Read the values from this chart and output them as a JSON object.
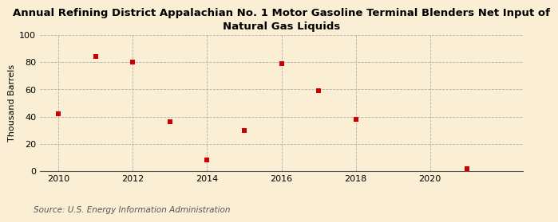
{
  "title_line1": "Annual Refining District Appalachian No. 1 Motor Gasoline Terminal Blenders Net Input of",
  "title_line2": "Natural Gas Liquids",
  "ylabel": "Thousand Barrels",
  "source_text": "Source: U.S. Energy Information Administration",
  "x_values": [
    2010,
    2011,
    2012,
    2013,
    2014,
    2015,
    2016,
    2017,
    2018,
    2021
  ],
  "y_values": [
    42,
    84,
    80,
    36,
    8,
    30,
    79,
    59,
    38,
    2
  ],
  "marker_color": "#cc0000",
  "marker_size": 4,
  "xlim": [
    2009.5,
    2022.5
  ],
  "ylim": [
    0,
    100
  ],
  "yticks": [
    0,
    20,
    40,
    60,
    80,
    100
  ],
  "xticks": [
    2010,
    2012,
    2014,
    2016,
    2018,
    2020
  ],
  "background_color": "#faefd4",
  "plot_bg_color": "#faefd4",
  "grid_color": "#aaaaaa",
  "title_fontsize": 9.5,
  "axis_label_fontsize": 8,
  "tick_fontsize": 8,
  "source_fontsize": 7.5
}
